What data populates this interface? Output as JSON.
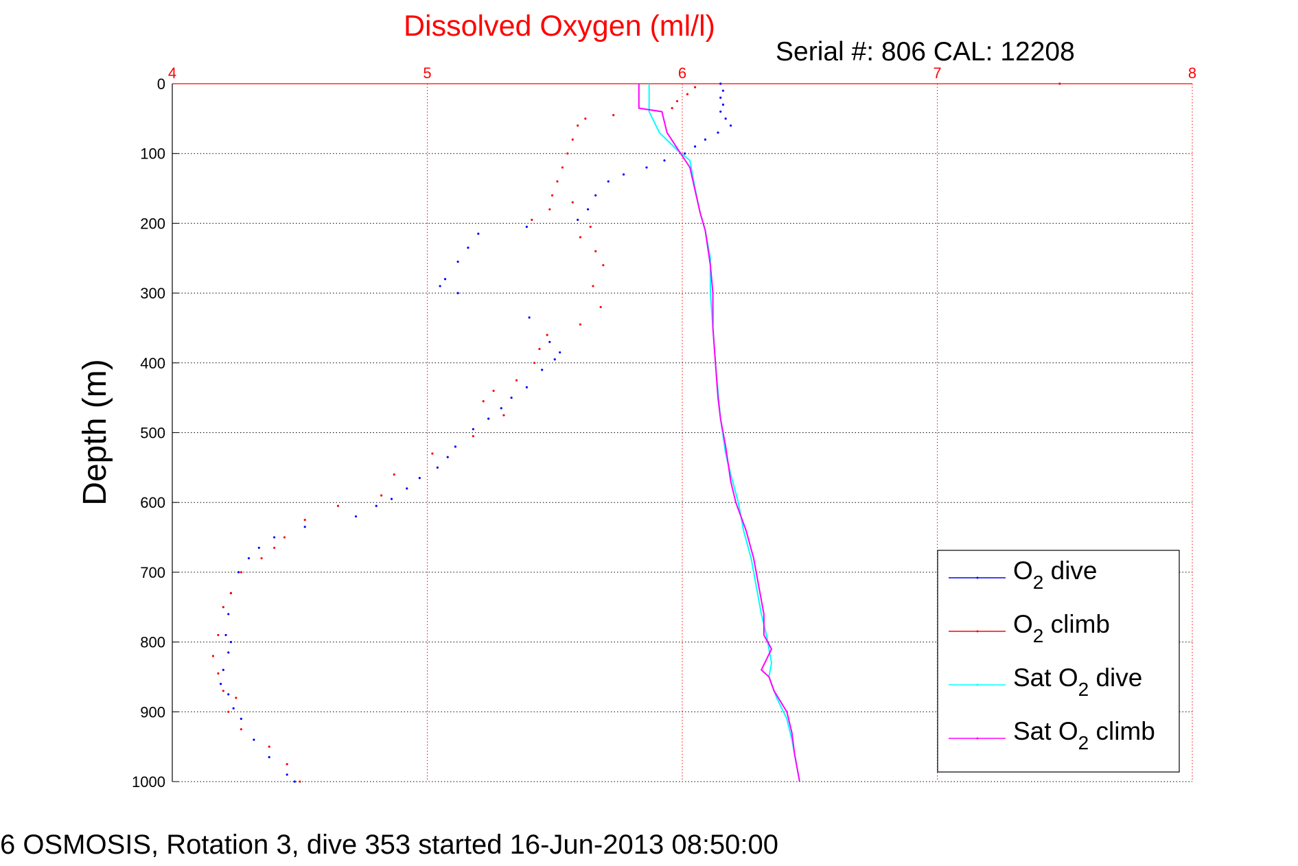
{
  "chart_data": {
    "type": "scatter",
    "title": "Dissolved Oxygen (ml/l)",
    "subtitle": "Serial #: 806  CAL: 12208",
    "caption": "6 OSMOSIS, Rotation 3, dive 353 started 16-Jun-2013 08:50:00",
    "xlabel": "",
    "ylabel": "Depth (m)",
    "xlim": [
      4,
      8
    ],
    "ylim": [
      0,
      1000
    ],
    "y_reversed": true,
    "x_axis_position": "top",
    "xticks": [
      "4",
      "5",
      "6",
      "7",
      "8"
    ],
    "yticks": [
      "0",
      "100",
      "200",
      "300",
      "400",
      "500",
      "600",
      "700",
      "800",
      "900",
      "1000"
    ],
    "grid": true,
    "legend_position": "lower-right",
    "colors": {
      "title": "#ff0000",
      "x_ticks": "#ff0000",
      "grid": "#ff0000",
      "o2_dive": "#0000ff",
      "o2_climb": "#ff0000",
      "sat_dive": "#00ffff",
      "sat_climb": "#ff00ff"
    },
    "series": [
      {
        "name": "O2 dive",
        "legend_prefix": "O",
        "legend_sub": "2",
        "legend_suffix": " dive",
        "style": "points",
        "points": [
          [
            6.15,
            0
          ],
          [
            6.16,
            10
          ],
          [
            6.15,
            20
          ],
          [
            6.16,
            30
          ],
          [
            6.15,
            40
          ],
          [
            6.17,
            50
          ],
          [
            6.19,
            60
          ],
          [
            6.14,
            70
          ],
          [
            6.09,
            80
          ],
          [
            6.05,
            90
          ],
          [
            6.01,
            100
          ],
          [
            5.93,
            110
          ],
          [
            5.86,
            120
          ],
          [
            5.77,
            130
          ],
          [
            5.71,
            140
          ],
          [
            5.66,
            160
          ],
          [
            5.63,
            180
          ],
          [
            5.59,
            195
          ],
          [
            5.39,
            205
          ],
          [
            5.2,
            215
          ],
          [
            5.16,
            235
          ],
          [
            5.12,
            255
          ],
          [
            5.07,
            280
          ],
          [
            5.05,
            290
          ],
          [
            5.12,
            300
          ],
          [
            5.4,
            335
          ],
          [
            5.48,
            370
          ],
          [
            5.52,
            385
          ],
          [
            5.5,
            395
          ],
          [
            5.45,
            410
          ],
          [
            5.39,
            435
          ],
          [
            5.33,
            450
          ],
          [
            5.29,
            465
          ],
          [
            5.24,
            480
          ],
          [
            5.18,
            495
          ],
          [
            5.11,
            520
          ],
          [
            5.08,
            535
          ],
          [
            5.04,
            550
          ],
          [
            4.97,
            565
          ],
          [
            4.92,
            580
          ],
          [
            4.86,
            595
          ],
          [
            4.8,
            605
          ],
          [
            4.72,
            620
          ],
          [
            4.52,
            635
          ],
          [
            4.4,
            650
          ],
          [
            4.34,
            665
          ],
          [
            4.3,
            680
          ],
          [
            4.26,
            700
          ],
          [
            4.23,
            730
          ],
          [
            4.22,
            760
          ],
          [
            4.21,
            790
          ],
          [
            4.23,
            800
          ],
          [
            4.22,
            815
          ],
          [
            4.2,
            840
          ],
          [
            4.19,
            860
          ],
          [
            4.22,
            875
          ],
          [
            4.24,
            895
          ],
          [
            4.27,
            910
          ],
          [
            4.32,
            940
          ],
          [
            4.38,
            965
          ],
          [
            4.45,
            990
          ],
          [
            4.48,
            1000
          ]
        ]
      },
      {
        "name": "O2 climb",
        "legend_prefix": "O",
        "legend_sub": "2",
        "legend_suffix": " climb",
        "style": "points",
        "points": [
          [
            7.48,
            0
          ],
          [
            6.05,
            5
          ],
          [
            6.02,
            15
          ],
          [
            5.98,
            25
          ],
          [
            5.96,
            35
          ],
          [
            5.73,
            45
          ],
          [
            5.62,
            50
          ],
          [
            5.59,
            60
          ],
          [
            5.57,
            80
          ],
          [
            5.55,
            100
          ],
          [
            5.53,
            120
          ],
          [
            5.51,
            140
          ],
          [
            5.49,
            160
          ],
          [
            5.57,
            170
          ],
          [
            5.48,
            180
          ],
          [
            5.41,
            195
          ],
          [
            5.64,
            205
          ],
          [
            5.6,
            220
          ],
          [
            5.66,
            240
          ],
          [
            5.69,
            260
          ],
          [
            5.65,
            290
          ],
          [
            5.68,
            320
          ],
          [
            5.6,
            345
          ],
          [
            5.47,
            360
          ],
          [
            5.44,
            380
          ],
          [
            5.42,
            400
          ],
          [
            5.35,
            425
          ],
          [
            5.26,
            440
          ],
          [
            5.22,
            455
          ],
          [
            5.3,
            475
          ],
          [
            5.18,
            505
          ],
          [
            5.02,
            530
          ],
          [
            4.87,
            560
          ],
          [
            4.82,
            590
          ],
          [
            4.65,
            605
          ],
          [
            4.52,
            625
          ],
          [
            4.44,
            650
          ],
          [
            4.4,
            665
          ],
          [
            4.35,
            680
          ],
          [
            4.27,
            700
          ],
          [
            4.23,
            730
          ],
          [
            4.2,
            750
          ],
          [
            4.18,
            790
          ],
          [
            4.16,
            820
          ],
          [
            4.18,
            845
          ],
          [
            4.2,
            870
          ],
          [
            4.25,
            880
          ],
          [
            4.22,
            900
          ],
          [
            4.27,
            925
          ],
          [
            4.38,
            950
          ],
          [
            4.45,
            975
          ],
          [
            4.5,
            1000
          ]
        ]
      },
      {
        "name": "Sat O2 dive",
        "legend_prefix": "Sat O",
        "legend_sub": "2",
        "legend_suffix": " dive",
        "style": "line",
        "points": [
          [
            5.87,
            0
          ],
          [
            5.87,
            40
          ],
          [
            5.91,
            70
          ],
          [
            5.98,
            95
          ],
          [
            6.03,
            110
          ],
          [
            6.05,
            150
          ],
          [
            6.07,
            185
          ],
          [
            6.09,
            210
          ],
          [
            6.11,
            250
          ],
          [
            6.11,
            300
          ],
          [
            6.12,
            350
          ],
          [
            6.13,
            400
          ],
          [
            6.14,
            440
          ],
          [
            6.15,
            480
          ],
          [
            6.17,
            530
          ],
          [
            6.19,
            560
          ],
          [
            6.22,
            600
          ],
          [
            6.24,
            640
          ],
          [
            6.27,
            680
          ],
          [
            6.29,
            720
          ],
          [
            6.31,
            760
          ],
          [
            6.33,
            790
          ],
          [
            6.35,
            830
          ],
          [
            6.34,
            850
          ],
          [
            6.37,
            880
          ],
          [
            6.41,
            910
          ],
          [
            6.43,
            940
          ],
          [
            6.44,
            960
          ],
          [
            6.45,
            980
          ],
          [
            6.46,
            1000
          ]
        ]
      },
      {
        "name": "Sat O2 climb",
        "legend_prefix": "Sat O",
        "legend_sub": "2",
        "legend_suffix": " climb",
        "style": "line",
        "points": [
          [
            5.83,
            0
          ],
          [
            5.83,
            35
          ],
          [
            5.92,
            40
          ],
          [
            5.94,
            70
          ],
          [
            5.99,
            98
          ],
          [
            6.03,
            120
          ],
          [
            6.07,
            185
          ],
          [
            6.09,
            210
          ],
          [
            6.11,
            260
          ],
          [
            6.12,
            300
          ],
          [
            6.12,
            350
          ],
          [
            6.13,
            400
          ],
          [
            6.14,
            450
          ],
          [
            6.15,
            480
          ],
          [
            6.17,
            520
          ],
          [
            6.19,
            570
          ],
          [
            6.21,
            600
          ],
          [
            6.25,
            640
          ],
          [
            6.28,
            680
          ],
          [
            6.3,
            720
          ],
          [
            6.32,
            760
          ],
          [
            6.32,
            790
          ],
          [
            6.35,
            810
          ],
          [
            6.31,
            840
          ],
          [
            6.34,
            850
          ],
          [
            6.36,
            870
          ],
          [
            6.41,
            900
          ],
          [
            6.43,
            930
          ],
          [
            6.44,
            960
          ],
          [
            6.46,
            1000
          ]
        ]
      }
    ]
  }
}
